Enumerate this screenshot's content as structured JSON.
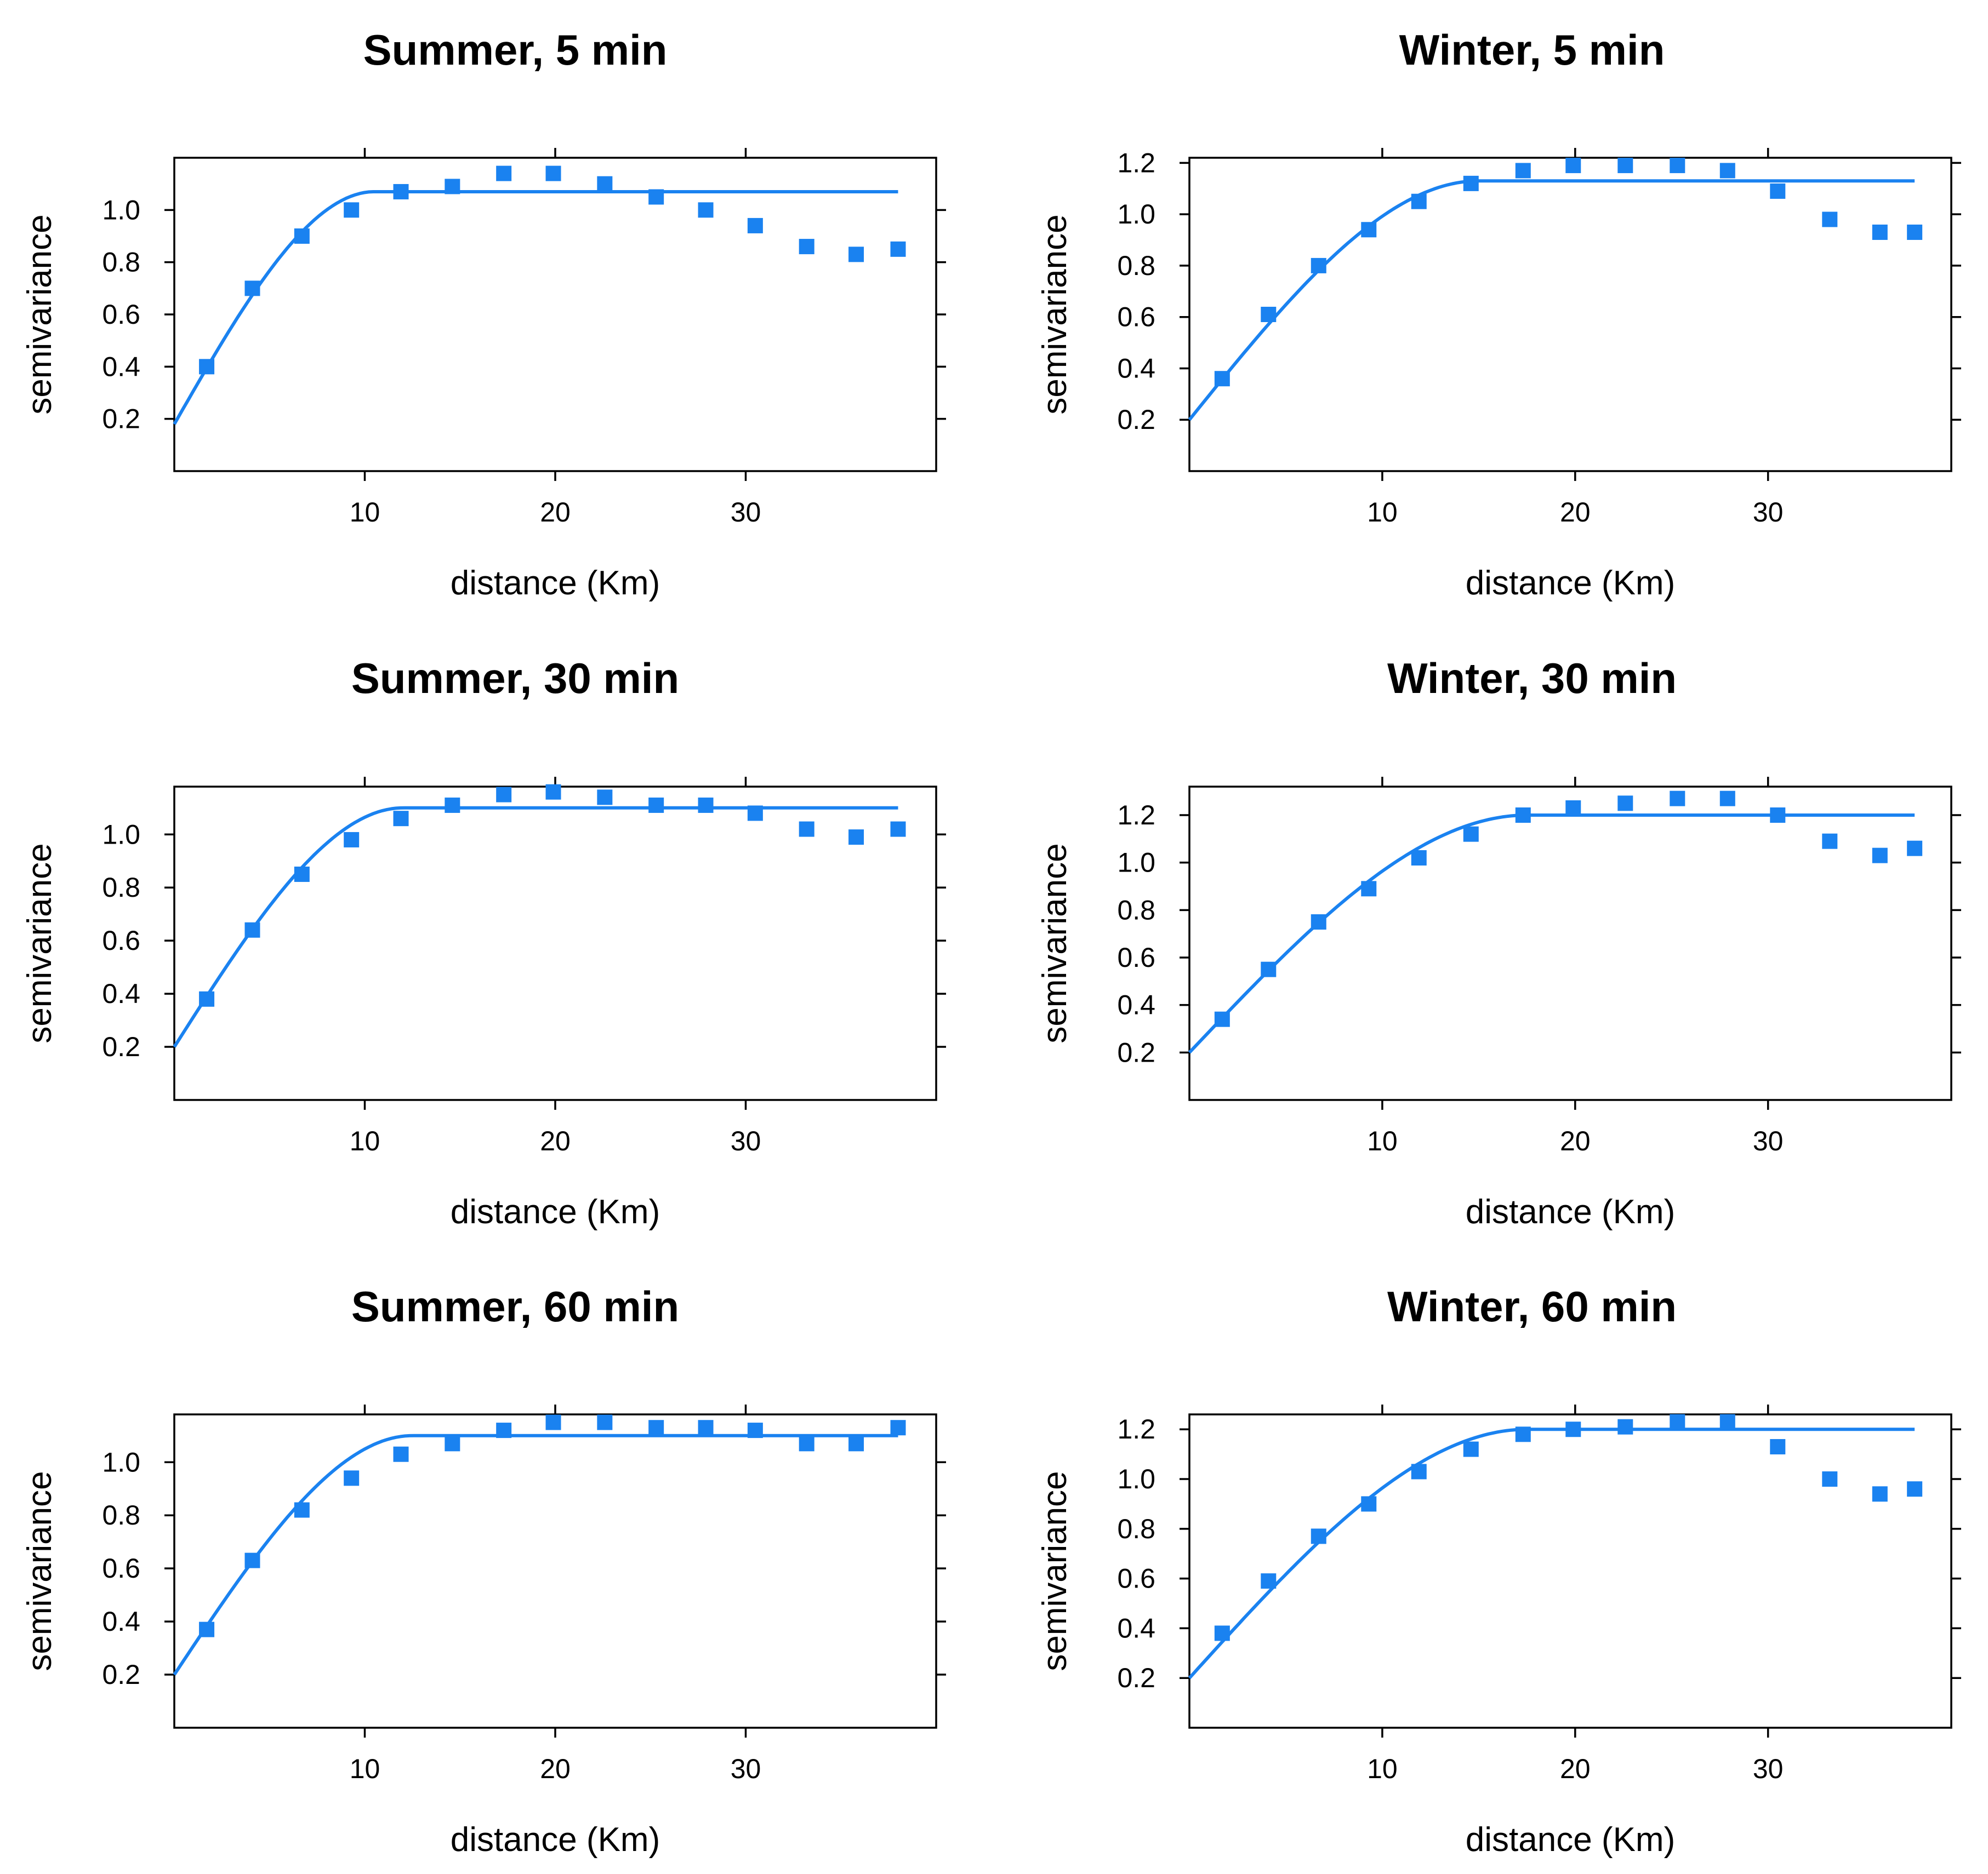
{
  "colors": {
    "series": "#1a82f0",
    "axis": "#000000",
    "background": "#ffffff"
  },
  "chart_data": [
    {
      "type": "scatter",
      "title": "Summer, 5 min",
      "xlabel": "distance (Km)",
      "ylabel": "semivariance",
      "xlim": [
        0,
        40
      ],
      "ylim": [
        0.0,
        1.2
      ],
      "xticks": [
        10,
        20,
        30
      ],
      "xtick_labels": [
        "10",
        "20",
        "30"
      ],
      "yticks": [
        0.2,
        0.4,
        0.6,
        0.8,
        1.0
      ],
      "ytick_labels": [
        "0.2",
        "0.4",
        "0.6",
        "0.8",
        "1.0"
      ],
      "points": {
        "x": [
          1.7,
          4.1,
          6.7,
          9.3,
          11.9,
          14.6,
          17.3,
          19.9,
          22.6,
          25.3,
          27.9,
          30.5,
          33.2,
          35.8,
          38.0
        ],
        "y": [
          0.4,
          0.7,
          0.9,
          1.0,
          1.07,
          1.09,
          1.14,
          1.14,
          1.1,
          1.05,
          1.0,
          0.94,
          0.86,
          0.83,
          0.85
        ]
      },
      "model": {
        "type": "spherical",
        "nugget": 0.18,
        "sill": 1.07,
        "range": 10.5,
        "xmax": 38.0
      }
    },
    {
      "type": "scatter",
      "title": "Winter, 5 min",
      "xlabel": "distance (Km)",
      "ylabel": "semivariance",
      "xlim": [
        0,
        39.5
      ],
      "ylim": [
        0.0,
        1.22
      ],
      "xticks": [
        10,
        20,
        30
      ],
      "xtick_labels": [
        "10",
        "20",
        "30"
      ],
      "yticks": [
        0.2,
        0.4,
        0.6,
        0.8,
        1.0,
        1.2
      ],
      "ytick_labels": [
        "0.2",
        "0.4",
        "0.6",
        "0.8",
        "1.0",
        "1.2"
      ],
      "points": {
        "x": [
          1.7,
          4.1,
          6.7,
          9.3,
          11.9,
          14.6,
          17.3,
          19.9,
          22.6,
          25.3,
          27.9,
          30.5,
          33.2,
          35.8,
          37.6
        ],
        "y": [
          0.36,
          0.61,
          0.8,
          0.94,
          1.05,
          1.12,
          1.17,
          1.19,
          1.19,
          1.19,
          1.17,
          1.09,
          0.98,
          0.93,
          0.93
        ]
      },
      "model": {
        "type": "spherical",
        "nugget": 0.2,
        "sill": 1.13,
        "range": 15.0,
        "xmax": 37.6
      }
    },
    {
      "type": "scatter",
      "title": "Summer, 30 min",
      "xlabel": "distance (Km)",
      "ylabel": "semivariance",
      "xlim": [
        0,
        40
      ],
      "ylim": [
        0.0,
        1.18
      ],
      "xticks": [
        10,
        20,
        30
      ],
      "xtick_labels": [
        "10",
        "20",
        "30"
      ],
      "yticks": [
        0.2,
        0.4,
        0.6,
        0.8,
        1.0
      ],
      "ytick_labels": [
        "0.2",
        "0.4",
        "0.6",
        "0.8",
        "1.0"
      ],
      "points": {
        "x": [
          1.7,
          4.1,
          6.7,
          9.3,
          11.9,
          14.6,
          17.3,
          19.9,
          22.6,
          25.3,
          27.9,
          30.5,
          33.2,
          35.8,
          38.0
        ],
        "y": [
          0.38,
          0.64,
          0.85,
          0.98,
          1.06,
          1.11,
          1.15,
          1.16,
          1.14,
          1.11,
          1.11,
          1.08,
          1.02,
          0.99,
          1.02
        ]
      },
      "model": {
        "type": "spherical",
        "nugget": 0.2,
        "sill": 1.1,
        "range": 12.0,
        "xmax": 38.0
      }
    },
    {
      "type": "scatter",
      "title": "Winter, 30 min",
      "xlabel": "distance (Km)",
      "ylabel": "semivariance",
      "xlim": [
        0,
        39.5
      ],
      "ylim": [
        0.0,
        1.32
      ],
      "xticks": [
        10,
        20,
        30
      ],
      "xtick_labels": [
        "10",
        "20",
        "30"
      ],
      "yticks": [
        0.2,
        0.4,
        0.6,
        0.8,
        1.0,
        1.2
      ],
      "ytick_labels": [
        "0.2",
        "0.4",
        "0.6",
        "0.8",
        "1.0",
        "1.2"
      ],
      "points": {
        "x": [
          1.7,
          4.1,
          6.7,
          9.3,
          11.9,
          14.6,
          17.3,
          19.9,
          22.6,
          25.3,
          27.9,
          30.5,
          33.2,
          35.8,
          37.6
        ],
        "y": [
          0.34,
          0.55,
          0.75,
          0.89,
          1.02,
          1.12,
          1.2,
          1.23,
          1.25,
          1.27,
          1.27,
          1.2,
          1.09,
          1.03,
          1.06
        ]
      },
      "model": {
        "type": "spherical",
        "nugget": 0.2,
        "sill": 1.2,
        "range": 17.5,
        "xmax": 37.6
      }
    },
    {
      "type": "scatter",
      "title": "Summer, 60 min",
      "xlabel": "distance (Km)",
      "ylabel": "semivariance",
      "xlim": [
        0,
        40
      ],
      "ylim": [
        0.0,
        1.18
      ],
      "xticks": [
        10,
        20,
        30
      ],
      "xtick_labels": [
        "10",
        "20",
        "30"
      ],
      "yticks": [
        0.2,
        0.4,
        0.6,
        0.8,
        1.0
      ],
      "ytick_labels": [
        "0.2",
        "0.4",
        "0.6",
        "0.8",
        "1.0"
      ],
      "points": {
        "x": [
          1.7,
          4.1,
          6.7,
          9.3,
          11.9,
          14.6,
          17.3,
          19.9,
          22.6,
          25.3,
          27.9,
          30.5,
          33.2,
          35.8,
          38.0
        ],
        "y": [
          0.37,
          0.63,
          0.82,
          0.94,
          1.03,
          1.07,
          1.12,
          1.15,
          1.15,
          1.13,
          1.13,
          1.12,
          1.07,
          1.07,
          1.13
        ]
      },
      "model": {
        "type": "spherical",
        "nugget": 0.2,
        "sill": 1.1,
        "range": 12.5,
        "xmax": 38.0
      }
    },
    {
      "type": "scatter",
      "title": "Winter, 60 min",
      "xlabel": "distance (Km)",
      "ylabel": "semivariance",
      "xlim": [
        0,
        39.5
      ],
      "ylim": [
        0.0,
        1.26
      ],
      "xticks": [
        10,
        20,
        30
      ],
      "xtick_labels": [
        "10",
        "20",
        "30"
      ],
      "yticks": [
        0.2,
        0.4,
        0.6,
        0.8,
        1.0,
        1.2
      ],
      "ytick_labels": [
        "0.2",
        "0.4",
        "0.6",
        "0.8",
        "1.0",
        "1.2"
      ],
      "points": {
        "x": [
          1.7,
          4.1,
          6.7,
          9.3,
          11.9,
          14.6,
          17.3,
          19.9,
          22.6,
          25.3,
          27.9,
          30.5,
          33.2,
          35.8,
          37.6
        ],
        "y": [
          0.38,
          0.59,
          0.77,
          0.9,
          1.03,
          1.12,
          1.18,
          1.2,
          1.21,
          1.23,
          1.23,
          1.13,
          1.0,
          0.94,
          0.96
        ]
      },
      "model": {
        "type": "spherical",
        "nugget": 0.2,
        "sill": 1.2,
        "range": 17.5,
        "xmax": 37.6
      }
    }
  ]
}
